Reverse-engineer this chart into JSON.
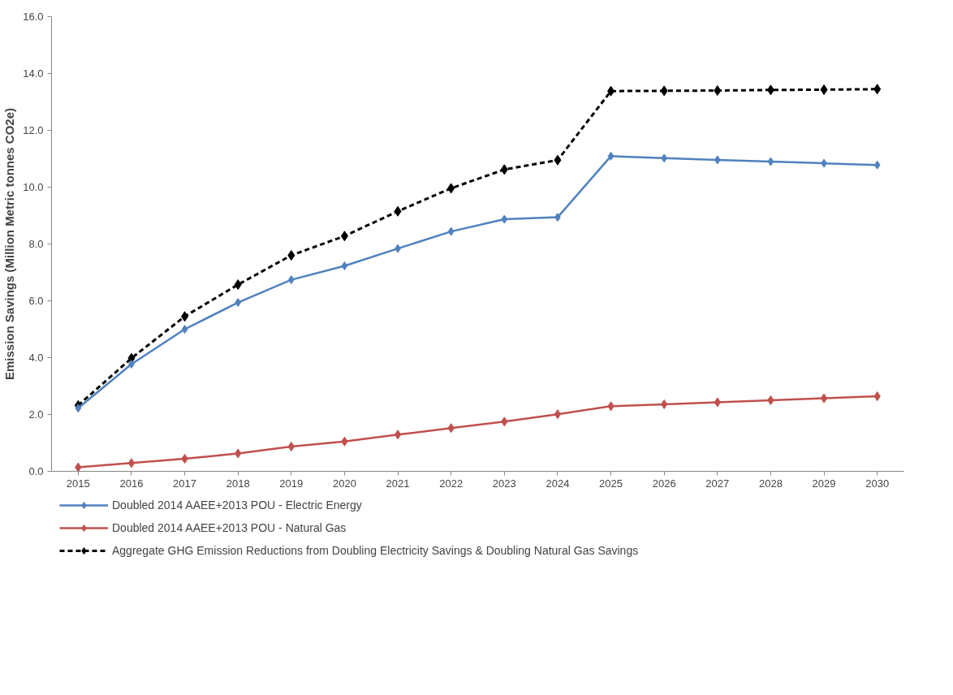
{
  "chart_data": {
    "type": "line",
    "ylabel": "Emission Savings (Million Metric tonnes CO2e)",
    "categories": [
      "2015",
      "2016",
      "2017",
      "2018",
      "2019",
      "2020",
      "2021",
      "2022",
      "2023",
      "2024",
      "2025",
      "2026",
      "2027",
      "2028",
      "2029",
      "2030"
    ],
    "series": [
      {
        "name": "Doubled 2014 AAEE+2013 POU - Electric Energy",
        "color": "#4f81bd",
        "line_style": "solid",
        "values": [
          2.22,
          3.77,
          5.0,
          5.94,
          6.74,
          7.23,
          7.84,
          8.44,
          8.87,
          8.94,
          11.09,
          11.02,
          10.96,
          10.9,
          10.84,
          10.78
        ]
      },
      {
        "name": "Doubled 2014 AAEE+2013 POU - Natural Gas",
        "color": "#c0504d",
        "line_style": "solid",
        "values": [
          0.14,
          0.29,
          0.44,
          0.63,
          0.87,
          1.05,
          1.29,
          1.52,
          1.75,
          2.01,
          2.29,
          2.36,
          2.43,
          2.5,
          2.57,
          2.64
        ]
      },
      {
        "name": "Aggregate GHG Emission Reductions from Doubling Electricity Savings & Doubling Natural Gas Savings",
        "color": "#000000",
        "line_style": "dashed",
        "values": [
          2.32,
          3.98,
          5.45,
          6.57,
          7.6,
          8.28,
          9.15,
          9.96,
          10.62,
          10.95,
          13.38,
          13.39,
          13.4,
          13.42,
          13.43,
          13.45
        ]
      }
    ],
    "ylim": [
      0,
      16
    ],
    "yticks": [
      {
        "value": 0,
        "label": "0.0"
      },
      {
        "value": 2,
        "label": "2.0"
      },
      {
        "value": 4,
        "label": "4.0"
      },
      {
        "value": 6,
        "label": "6.0"
      },
      {
        "value": 8,
        "label": "8.0"
      },
      {
        "value": 10,
        "label": "10.0"
      },
      {
        "value": 12,
        "label": "12.0"
      },
      {
        "value": 14,
        "label": "14.0"
      },
      {
        "value": 16,
        "label": "16.0"
      }
    ],
    "grid": false,
    "legend": "bottom",
    "marker": "diamond"
  }
}
